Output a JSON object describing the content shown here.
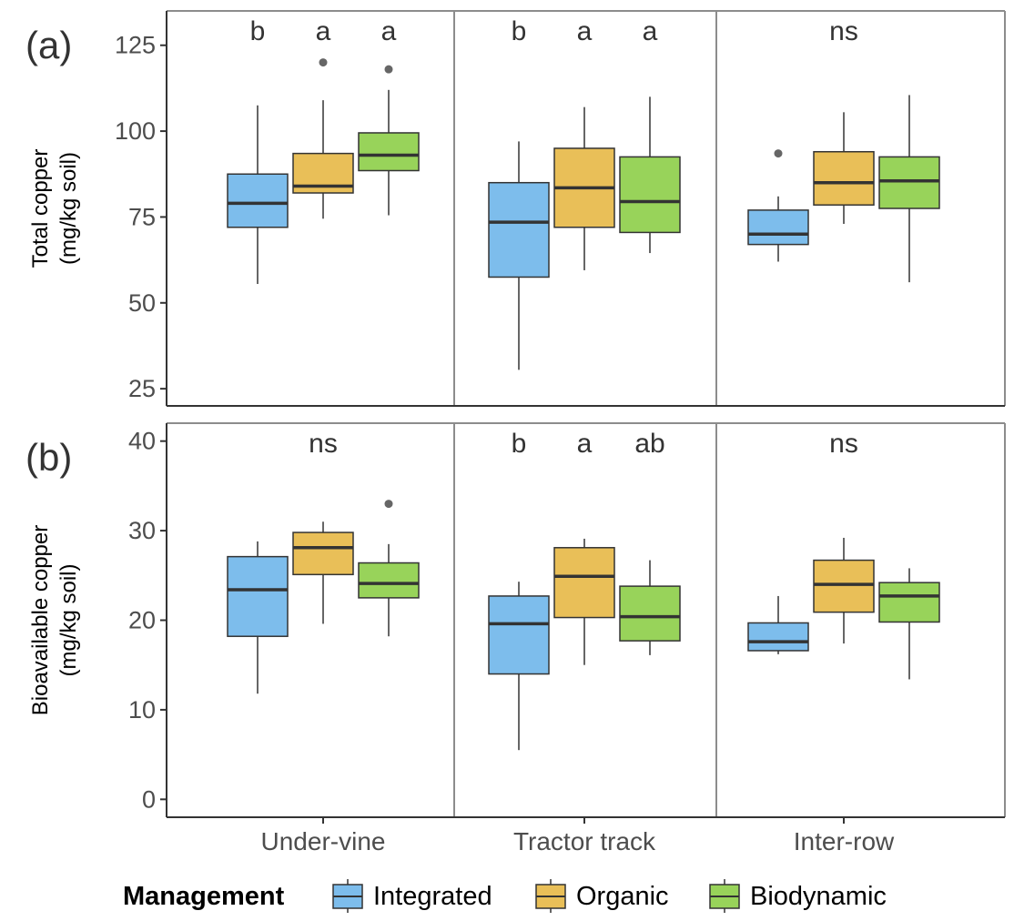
{
  "legend": {
    "title": "Management",
    "items": [
      {
        "label": "Integrated",
        "color": "#7dbdec"
      },
      {
        "label": "Organic",
        "color": "#e9bf58"
      },
      {
        "label": "Biodynamic",
        "color": "#98d35a"
      }
    ]
  },
  "chart_data": [
    {
      "type": "boxplot",
      "panel_label": "(a)",
      "ylabel": [
        "Total copper",
        "(mg/kg soil)"
      ],
      "ylim": [
        20,
        135
      ],
      "yticks": [
        25,
        50,
        75,
        100,
        125
      ],
      "grid": false,
      "facets": [
        "Under-vine",
        "Tractor track",
        "Inter-row"
      ],
      "series_names": [
        "Integrated",
        "Organic",
        "Biodynamic"
      ],
      "groups": [
        {
          "facet": "Under-vine",
          "letters": [
            "b",
            "a",
            "a"
          ],
          "boxes": [
            {
              "series": "Integrated",
              "min": 55.5,
              "q1": 72,
              "median": 79,
              "q3": 87.5,
              "max": 107.5,
              "outliers": []
            },
            {
              "series": "Organic",
              "min": 74.5,
              "q1": 82,
              "median": 84,
              "q3": 93.5,
              "max": 109,
              "outliers": [
                120
              ]
            },
            {
              "series": "Biodynamic",
              "min": 75.5,
              "q1": 88.5,
              "median": 93,
              "q3": 99.5,
              "max": 112,
              "outliers": [
                118
              ]
            }
          ]
        },
        {
          "facet": "Tractor track",
          "letters": [
            "b",
            "a",
            "a"
          ],
          "boxes": [
            {
              "series": "Integrated",
              "min": 30.5,
              "q1": 57.5,
              "median": 73.5,
              "q3": 85,
              "max": 97,
              "outliers": []
            },
            {
              "series": "Organic",
              "min": 59.5,
              "q1": 72,
              "median": 83.5,
              "q3": 95,
              "max": 107,
              "outliers": []
            },
            {
              "series": "Biodynamic",
              "min": 64.5,
              "q1": 70.5,
              "median": 79.5,
              "q3": 92.5,
              "max": 110,
              "outliers": []
            }
          ]
        },
        {
          "facet": "Inter-row",
          "letters": [
            "ns"
          ],
          "boxes": [
            {
              "series": "Integrated",
              "min": 62,
              "q1": 67,
              "median": 70,
              "q3": 77,
              "max": 81,
              "outliers": [
                93.5
              ]
            },
            {
              "series": "Organic",
              "min": 73,
              "q1": 78.5,
              "median": 85,
              "q3": 94,
              "max": 105.5,
              "outliers": []
            },
            {
              "series": "Biodynamic",
              "min": 56,
              "q1": 77.5,
              "median": 85.5,
              "q3": 92.5,
              "max": 110.5,
              "outliers": []
            }
          ]
        }
      ]
    },
    {
      "type": "boxplot",
      "panel_label": "(b)",
      "ylabel": [
        "Bioavailable copper",
        "(mg/kg soil)"
      ],
      "ylim": [
        -2,
        42
      ],
      "yticks": [
        0,
        10,
        20,
        30,
        40
      ],
      "grid": false,
      "facets": [
        "Under-vine",
        "Tractor track",
        "Inter-row"
      ],
      "series_names": [
        "Integrated",
        "Organic",
        "Biodynamic"
      ],
      "groups": [
        {
          "facet": "Under-vine",
          "letters": [
            "ns"
          ],
          "boxes": [
            {
              "series": "Integrated",
              "min": 11.8,
              "q1": 18.2,
              "median": 23.4,
              "q3": 27.1,
              "max": 28.8,
              "outliers": []
            },
            {
              "series": "Organic",
              "min": 19.6,
              "q1": 25.1,
              "median": 28.1,
              "q3": 29.8,
              "max": 31,
              "outliers": []
            },
            {
              "series": "Biodynamic",
              "min": 18.2,
              "q1": 22.5,
              "median": 24.1,
              "q3": 26.4,
              "max": 28.5,
              "outliers": [
                33
              ]
            }
          ]
        },
        {
          "facet": "Tractor track",
          "letters": [
            "b",
            "a",
            "ab"
          ],
          "boxes": [
            {
              "series": "Integrated",
              "min": 5.5,
              "q1": 14,
              "median": 19.6,
              "q3": 22.7,
              "max": 24.3,
              "outliers": []
            },
            {
              "series": "Organic",
              "min": 15,
              "q1": 20.3,
              "median": 24.9,
              "q3": 28.1,
              "max": 29.1,
              "outliers": []
            },
            {
              "series": "Biodynamic",
              "min": 16.1,
              "q1": 17.7,
              "median": 20.4,
              "q3": 23.8,
              "max": 26.7,
              "outliers": []
            }
          ]
        },
        {
          "facet": "Inter-row",
          "letters": [
            "ns"
          ],
          "boxes": [
            {
              "series": "Integrated",
              "min": 16.2,
              "q1": 16.6,
              "median": 17.6,
              "q3": 19.7,
              "max": 22.7,
              "outliers": []
            },
            {
              "series": "Organic",
              "min": 17.4,
              "q1": 20.9,
              "median": 24,
              "q3": 26.7,
              "max": 29.2,
              "outliers": []
            },
            {
              "series": "Biodynamic",
              "min": 13.4,
              "q1": 19.8,
              "median": 22.7,
              "q3": 24.2,
              "max": 25.8,
              "outliers": []
            }
          ]
        }
      ]
    }
  ]
}
